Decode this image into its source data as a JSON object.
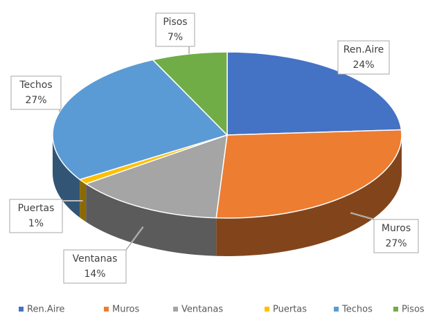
{
  "chart_data": {
    "type": "pie3d",
    "categories": [
      "Ren.Aire",
      "Muros",
      "Ventanas",
      "Puertas",
      "Techos",
      "Pisos"
    ],
    "values": [
      24,
      27,
      14,
      1,
      27,
      7
    ],
    "value_labels": [
      "24%",
      "27%",
      "14%",
      "1%",
      "27%",
      "7%"
    ],
    "colors": [
      "#4472c4",
      "#ed7d31",
      "#a5a5a5",
      "#ffc000",
      "#5b9bd5",
      "#70ad47"
    ],
    "legend": "bottom"
  }
}
